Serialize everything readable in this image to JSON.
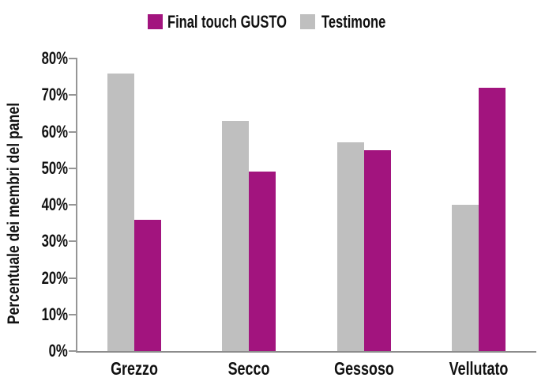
{
  "legend": {
    "items": [
      {
        "label": "Final touch GUSTO",
        "color": "#A2147E"
      },
      {
        "label": "Testimone",
        "color": "#BFBFBF"
      }
    ]
  },
  "chart_data": {
    "type": "bar",
    "categories": [
      "Grezzo",
      "Secco",
      "Gessoso",
      "Vellutato"
    ],
    "series": [
      {
        "name": "Testimone",
        "color": "#BFBFBF",
        "values": [
          76,
          63,
          57,
          40
        ]
      },
      {
        "name": "Final touch GUSTO",
        "color": "#A2147E",
        "values": [
          36,
          49,
          55,
          72
        ]
      }
    ],
    "title": "",
    "xlabel": "",
    "ylabel": "Percentuale dei membri del panel",
    "ylim": [
      0,
      80
    ],
    "ytick_labels": [
      "0%",
      "10%",
      "20%",
      "30%",
      "40%",
      "50%",
      "60%",
      "70%",
      "80%"
    ],
    "grid": false,
    "legend_position": "top-center",
    "bar_order_in_group": [
      "Testimone",
      "Final touch GUSTO"
    ]
  },
  "style": {
    "axis_color": "#969696",
    "text_color": "#111111",
    "background_color": "#FFFFFF",
    "gusto_color": "#A2147E",
    "testimone_color": "#BFBFBF"
  }
}
